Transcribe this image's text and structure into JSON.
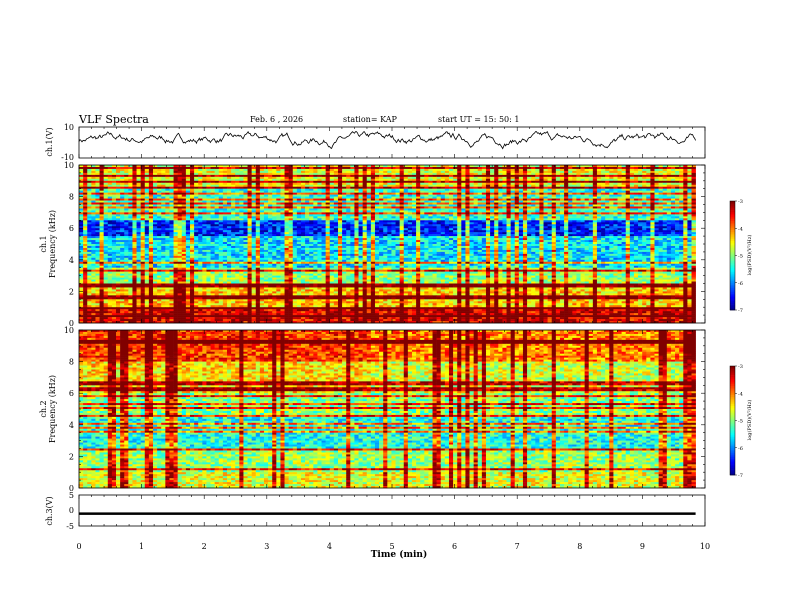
{
  "header": {
    "title": "VLF Spectra",
    "date": "Feb. 6 , 2026",
    "station": "station= KAP",
    "start_time": "start  UT =  15: 50: 1"
  },
  "chart_data": [
    {
      "type": "line",
      "name": "ch1-waveform",
      "ylabel": "ch.1(V)",
      "ylim": [
        -10,
        10
      ],
      "y_ticks": [
        "10",
        "-10"
      ],
      "xlim": [
        0,
        10
      ],
      "approx_range": [
        -4,
        7
      ],
      "description_series": "noisy voltage trace centred near +2 V"
    },
    {
      "type": "heatmap",
      "name": "ch1-spectrogram",
      "ylabel": "ch.1",
      "ylabel2": "Frequency (kHz)",
      "y_ticks": [
        "0",
        "2",
        "4",
        "6",
        "8",
        "10"
      ],
      "ylim": [
        0,
        10
      ],
      "xlim": [
        0,
        10
      ],
      "colorbar": {
        "label": "log(PSD)(V²/Hz)",
        "ticks": [
          "-3",
          "-4",
          "-5",
          "-6",
          "-7"
        ],
        "range": [
          -7,
          -3
        ]
      },
      "bands": [
        {
          "f_low": 0.0,
          "f_high": 1.0,
          "level": -3.4
        },
        {
          "f_low": 1.0,
          "f_high": 2.5,
          "level": -4.3
        },
        {
          "f_low": 2.5,
          "f_high": 3.5,
          "level": -4.9
        },
        {
          "f_low": 3.5,
          "f_high": 5.5,
          "level": -5.6
        },
        {
          "f_low": 5.5,
          "f_high": 6.5,
          "level": -6.4
        },
        {
          "f_low": 6.5,
          "f_high": 8.5,
          "level": -5.3
        },
        {
          "f_low": 8.5,
          "f_high": 10.0,
          "level": -4.6
        }
      ]
    },
    {
      "type": "heatmap",
      "name": "ch2-spectrogram",
      "ylabel": "ch.2",
      "ylabel2": "Frequency (kHz)",
      "y_ticks": [
        "0",
        "2",
        "4",
        "6",
        "8",
        "10"
      ],
      "ylim": [
        0,
        10
      ],
      "xlim": [
        0,
        10
      ],
      "colorbar": {
        "label": "log(PSD)(V²/Hz)",
        "ticks": [
          "-3",
          "-4",
          "-5",
          "-6",
          "-7"
        ],
        "range": [
          -7,
          -3
        ]
      },
      "bands": [
        {
          "f_low": 0.0,
          "f_high": 1.0,
          "level": -4.6
        },
        {
          "f_low": 1.0,
          "f_high": 2.5,
          "level": -4.9
        },
        {
          "f_low": 2.5,
          "f_high": 4.5,
          "level": -5.4
        },
        {
          "f_low": 4.5,
          "f_high": 6.0,
          "level": -5.0
        },
        {
          "f_low": 6.0,
          "f_high": 8.0,
          "level": -4.4
        },
        {
          "f_low": 8.0,
          "f_high": 10.0,
          "level": -3.7
        }
      ]
    },
    {
      "type": "line",
      "name": "ch3-waveform",
      "ylabel": "ch.3(V)",
      "ylim": [
        -5,
        5
      ],
      "y_ticks": [
        "5",
        "0",
        "-5"
      ],
      "xlim": [
        0,
        10
      ],
      "x_ticks": [
        "0",
        "1",
        "2",
        "3",
        "4",
        "5",
        "6",
        "7",
        "8",
        "9",
        "10"
      ],
      "xlabel": "Time (min)",
      "value_range": [
        -1.4,
        -0.6
      ]
    }
  ]
}
